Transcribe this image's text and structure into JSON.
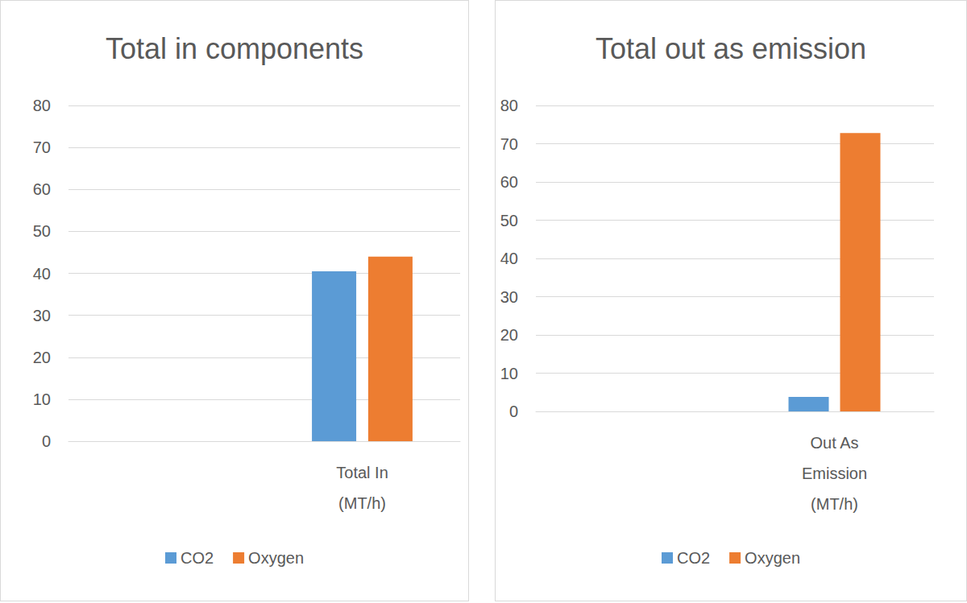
{
  "chart_data": [
    {
      "type": "bar",
      "title": "Total in components",
      "categories": [
        null,
        "Total In\n(MT/h)"
      ],
      "series": [
        {
          "name": "CO2",
          "color": "#5b9bd5",
          "values": [
            null,
            40.5
          ]
        },
        {
          "name": "Oxygen",
          "color": "#ed7d31",
          "values": [
            null,
            44
          ]
        }
      ],
      "ylim": [
        0,
        80
      ],
      "yticks": [
        0,
        10,
        20,
        30,
        40,
        50,
        60,
        70,
        80
      ],
      "grid": true,
      "legend": "bottom"
    },
    {
      "type": "bar",
      "title": "Total out as emission",
      "categories": [
        null,
        "Out As\nEmission\n(MT/h)"
      ],
      "series": [
        {
          "name": "CO2",
          "color": "#5b9bd5",
          "values": [
            null,
            3.8
          ]
        },
        {
          "name": "Oxygen",
          "color": "#ed7d31",
          "values": [
            null,
            72.8
          ]
        }
      ],
      "ylim": [
        0,
        80
      ],
      "yticks": [
        0,
        10,
        20,
        30,
        40,
        50,
        60,
        70,
        80
      ],
      "grid": true,
      "legend": "bottom"
    }
  ]
}
